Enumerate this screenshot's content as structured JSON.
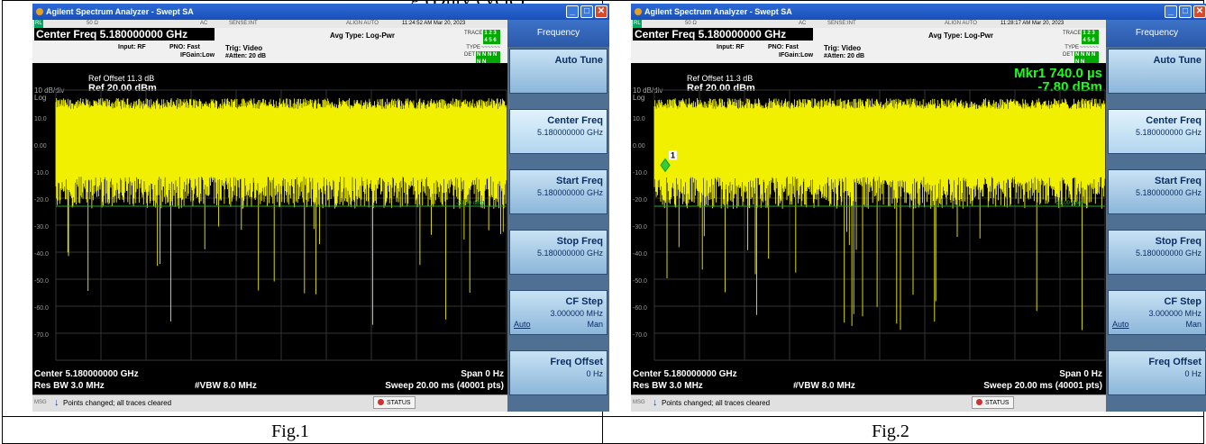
{
  "page_top_text": "g (Duty cycle)",
  "captions": [
    "Fig.1",
    "Fig.2"
  ],
  "screens": [
    {
      "window_title": "Agilent Spectrum Analyzer - Swept SA",
      "strip": {
        "rl": "RL",
        "ohm": "50 Ω",
        "ac": "AC",
        "sense": "SENSE:INT",
        "align": "ALIGN AUTO",
        "time": "11:24:52 AM Mar 20, 2023"
      },
      "center_freq_label": "Center Freq 5.180000000 GHz",
      "input": "Input: RF",
      "pno": "PNO: Fast",
      "ifgain": "IFGain:Low",
      "trig": "Trig: Video",
      "atten": "#Atten: 20 dB",
      "avg_type": "Avg Type: Log-Pwr",
      "trace_label": "TRACE",
      "trace_nums": "1 2 3 4 5 6",
      "type_label": "TYPE",
      "det_label": "DET",
      "det_val": "N N N N N N",
      "db_div": "10 dB/div",
      "log": "Log",
      "ref_offset": "Ref Offset 11.3 dB",
      "ref": "Ref 20.00 dBm",
      "marker": null,
      "marker_value": null,
      "y_ticks": [
        "10.0",
        "0.00",
        "-10.0",
        "-20.0",
        "-30.0",
        "-40.0",
        "-50.0",
        "-60.0",
        "-70.0"
      ],
      "bottom": {
        "center": "Center 5.180000000 GHz",
        "span": "Span 0 Hz",
        "rbw": "Res BW 3.0 MHz",
        "vbw": "#VBW 8.0 MHz",
        "sweep": "Sweep 20.00 ms (40001 pts)"
      },
      "status": {
        "msg": "MSG",
        "text": "Points changed; all traces cleared",
        "status": "STATUS"
      },
      "trigger_level_text": "-23.00 dBm"
    },
    {
      "window_title": "Agilent Spectrum Analyzer - Swept SA",
      "strip": {
        "rl": "RL",
        "ohm": "50 Ω",
        "ac": "AC",
        "sense": "SENSE:INT",
        "align": "ALIGN AUTO",
        "time": "11:28:17 AM Mar 20, 2023"
      },
      "center_freq_label": "Center Freq 5.180000000 GHz",
      "input": "Input: RF",
      "pno": "PNO: Fast",
      "ifgain": "IFGain:Low",
      "trig": "Trig: Video",
      "atten": "#Atten: 20 dB",
      "avg_type": "Avg Type: Log-Pwr",
      "trace_label": "TRACE",
      "trace_nums": "1 2 3 4 5 6",
      "type_label": "TYPE",
      "det_label": "DET",
      "det_val": "N N N N N N",
      "db_div": "10 dB/div",
      "log": "Log",
      "ref_offset": "Ref Offset 11.3 dB",
      "ref": "Ref 20.00 dBm",
      "marker": "Mkr1 740.0 µs",
      "marker_value": "-7.80 dBm",
      "marker_num": "1",
      "y_ticks": [
        "10.0",
        "0.00",
        "-10.0",
        "-20.0",
        "-30.0",
        "-40.0",
        "-50.0",
        "-60.0",
        "-70.0"
      ],
      "bottom": {
        "center": "Center 5.180000000 GHz",
        "span": "Span 0 Hz",
        "rbw": "Res BW 3.0 MHz",
        "vbw": "#VBW 8.0 MHz",
        "sweep": "Sweep 20.00 ms (40001 pts)"
      },
      "status": {
        "msg": "MSG",
        "text": "Points changed; all traces cleared",
        "status": "STATUS"
      },
      "trigger_level_text": "-23.00 dBm"
    }
  ],
  "menu": {
    "header": "Frequency",
    "keys": [
      {
        "label": "Auto Tune",
        "value": ""
      },
      {
        "label": "Center Freq",
        "value": "5.180000000 GHz"
      },
      {
        "label": "Start Freq",
        "value": "5.180000000 GHz"
      },
      {
        "label": "Stop Freq",
        "value": "5.180000000 GHz"
      },
      {
        "label": "CF Step",
        "value": "3.000000 MHz",
        "auto": "Auto",
        "man": "Man"
      },
      {
        "label": "Freq Offset",
        "value": "0 Hz"
      }
    ]
  },
  "colors": {
    "trace": "#f0f000",
    "trigger_line": "#2ea82e",
    "marker": "#1aff1a",
    "plot_bg": "#000000"
  }
}
